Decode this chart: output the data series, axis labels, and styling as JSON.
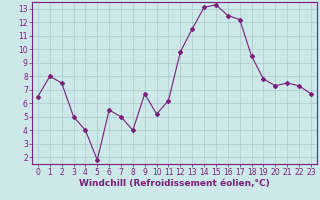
{
  "x": [
    0,
    1,
    2,
    3,
    4,
    5,
    6,
    7,
    8,
    9,
    10,
    11,
    12,
    13,
    14,
    15,
    16,
    17,
    18,
    19,
    20,
    21,
    22,
    23
  ],
  "y": [
    6.5,
    8.0,
    7.5,
    5.0,
    4.0,
    1.8,
    5.5,
    5.0,
    4.0,
    6.7,
    5.2,
    6.2,
    9.8,
    11.5,
    13.1,
    13.3,
    12.5,
    12.2,
    9.5,
    7.8,
    7.3,
    7.5,
    7.3,
    6.7
  ],
  "line_color": "#7a1f7a",
  "marker": "D",
  "marker_size": 2,
  "bg_color": "#cce8e8",
  "grid_color": "#aacccc",
  "xlabel": "Windchill (Refroidissement éolien,°C)",
  "xlim": [
    -0.5,
    23.5
  ],
  "ylim": [
    1.5,
    13.5
  ],
  "yticks": [
    2,
    3,
    4,
    5,
    6,
    7,
    8,
    9,
    10,
    11,
    12,
    13
  ],
  "xticks": [
    0,
    1,
    2,
    3,
    4,
    5,
    6,
    7,
    8,
    9,
    10,
    11,
    12,
    13,
    14,
    15,
    16,
    17,
    18,
    19,
    20,
    21,
    22,
    23
  ],
  "tick_color": "#7a1f7a",
  "axis_color": "#7a1f7a",
  "label_fontsize": 6.5,
  "tick_fontsize": 5.5
}
